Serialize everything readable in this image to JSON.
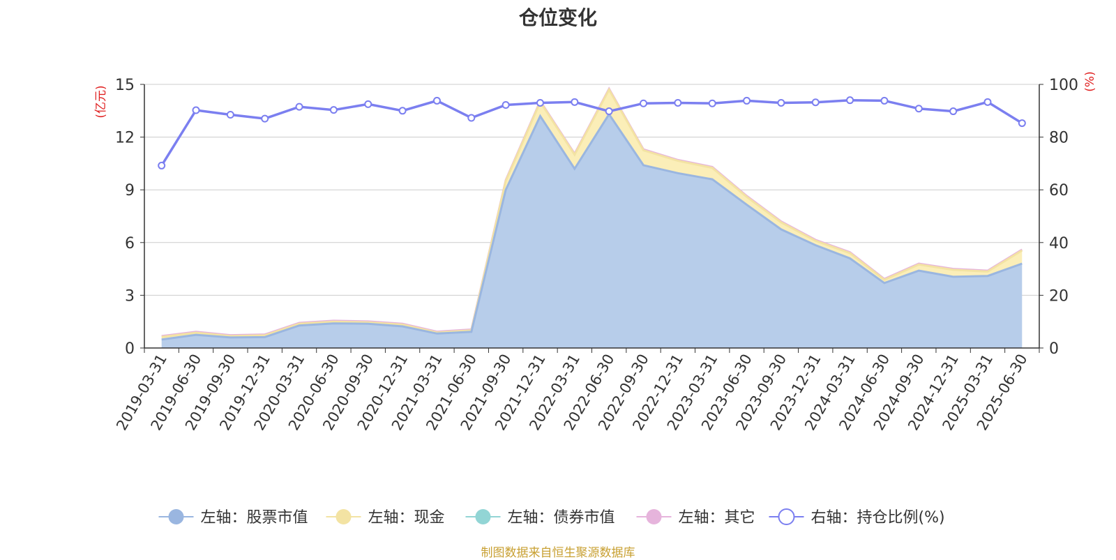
{
  "chart_data": {
    "type": "area",
    "title": "仓位变化",
    "y_left_unit": "(亿元)",
    "y_right_unit": "(%)",
    "ylim_left": [
      0,
      15
    ],
    "yticks_left": [
      0,
      3,
      6,
      9,
      12,
      15
    ],
    "ylim_right": [
      0,
      100
    ],
    "yticks_right": [
      0,
      20,
      40,
      60,
      80,
      100
    ],
    "grid": true,
    "legend_position": "bottom",
    "categories": [
      "2019-03-31",
      "2019-06-30",
      "2019-09-30",
      "2019-12-31",
      "2020-03-31",
      "2020-06-30",
      "2020-09-30",
      "2020-12-31",
      "2021-03-31",
      "2021-06-30",
      "2021-09-30",
      "2021-12-31",
      "2022-03-31",
      "2022-06-30",
      "2022-09-30",
      "2022-12-31",
      "2023-03-31",
      "2023-06-30",
      "2023-09-30",
      "2023-12-31",
      "2024-03-31",
      "2024-06-30",
      "2024-09-30",
      "2024-12-31",
      "2025-03-31",
      "2025-06-30"
    ],
    "series": [
      {
        "name": "左轴：股票市值",
        "axis": "left",
        "stack": true,
        "color": "#9ab6e0",
        "fill": "#b7cdea",
        "values": [
          0.48,
          0.75,
          0.6,
          0.62,
          1.28,
          1.4,
          1.38,
          1.23,
          0.82,
          0.92,
          9.0,
          13.2,
          10.2,
          13.3,
          10.4,
          9.95,
          9.6,
          8.15,
          6.75,
          5.85,
          5.1,
          3.7,
          4.4,
          4.05,
          4.1,
          4.8
        ]
      },
      {
        "name": "左轴：现金",
        "axis": "left",
        "stack": true,
        "color": "#f3e3a3",
        "fill": "#fbeeb8",
        "values": [
          0.15,
          0.12,
          0.08,
          0.1,
          0.1,
          0.1,
          0.08,
          0.1,
          0.06,
          0.08,
          0.5,
          0.8,
          0.8,
          1.4,
          0.85,
          0.7,
          0.65,
          0.45,
          0.4,
          0.25,
          0.3,
          0.18,
          0.35,
          0.4,
          0.25,
          0.75
        ]
      },
      {
        "name": "左轴：债券市值",
        "axis": "left",
        "stack": true,
        "color": "#92d5d5",
        "fill": "#a9dede",
        "values": [
          0,
          0,
          0,
          0,
          0,
          0,
          0,
          0,
          0,
          0,
          0,
          0,
          0,
          0,
          0,
          0,
          0,
          0,
          0,
          0,
          0,
          0,
          0,
          0,
          0,
          0
        ]
      },
      {
        "name": "左轴：其它",
        "axis": "left",
        "stack": true,
        "color": "#e6b4dc",
        "fill": "#f0c8e6",
        "values": [
          0.05,
          0.05,
          0.05,
          0.05,
          0.05,
          0.05,
          0.05,
          0.05,
          0.05,
          0.05,
          0.05,
          0.05,
          0.05,
          0.05,
          0.05,
          0.05,
          0.05,
          0.05,
          0.05,
          0.05,
          0.05,
          0.05,
          0.05,
          0.05,
          0.05,
          0.05
        ]
      },
      {
        "name": "右轴：持仓比例(%)",
        "axis": "right",
        "stack": false,
        "color": "#7b7ff0",
        "values": [
          69.2,
          90.2,
          88.5,
          87.0,
          91.5,
          90.3,
          92.5,
          90.0,
          93.8,
          87.3,
          92.2,
          93.0,
          93.3,
          89.8,
          92.8,
          93.0,
          92.8,
          93.8,
          93.0,
          93.2,
          94.0,
          93.8,
          90.8,
          89.8,
          93.3,
          85.3
        ]
      }
    ]
  },
  "source_note": "制图数据来自恒生聚源数据库"
}
